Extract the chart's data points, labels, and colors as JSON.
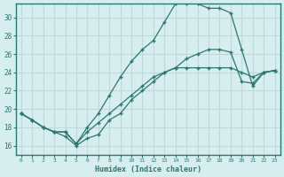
{
  "xlabel": "Humidex (Indice chaleur)",
  "bg_color": "#d6eeee",
  "grid_color": "#c0d8d8",
  "line_color": "#2a7a6a",
  "xlim": [
    -0.5,
    23.5
  ],
  "ylim": [
    15.0,
    31.5
  ],
  "xticks": [
    0,
    1,
    2,
    3,
    4,
    5,
    6,
    7,
    8,
    9,
    10,
    11,
    12,
    13,
    14,
    15,
    16,
    17,
    18,
    19,
    20,
    21,
    22,
    23
  ],
  "yticks": [
    16,
    18,
    20,
    22,
    24,
    26,
    28,
    30
  ],
  "series": [
    [
      19.5,
      18.8,
      18.0,
      17.5,
      17.5,
      16.2,
      17.5,
      18.5,
      19.5,
      20.5,
      21.5,
      22.5,
      23.5,
      24.0,
      24.5,
      24.5,
      24.5,
      24.5,
      24.5,
      24.5,
      24.0,
      23.5,
      24.0,
      24.2
    ],
    [
      19.5,
      18.8,
      18.0,
      17.5,
      17.5,
      16.2,
      18.0,
      19.5,
      21.5,
      23.5,
      25.2,
      26.5,
      27.5,
      29.5,
      31.5,
      31.5,
      31.5,
      31.0,
      31.0,
      30.5,
      26.5,
      22.5,
      24.0,
      24.2
    ],
    [
      19.5,
      18.8,
      18.0,
      17.5,
      17.0,
      16.0,
      16.8,
      17.2,
      18.8,
      19.5,
      21.0,
      22.0,
      23.0,
      24.0,
      24.5,
      25.5,
      26.0,
      26.5,
      26.5,
      26.2,
      23.0,
      22.8,
      24.0,
      24.2
    ]
  ]
}
